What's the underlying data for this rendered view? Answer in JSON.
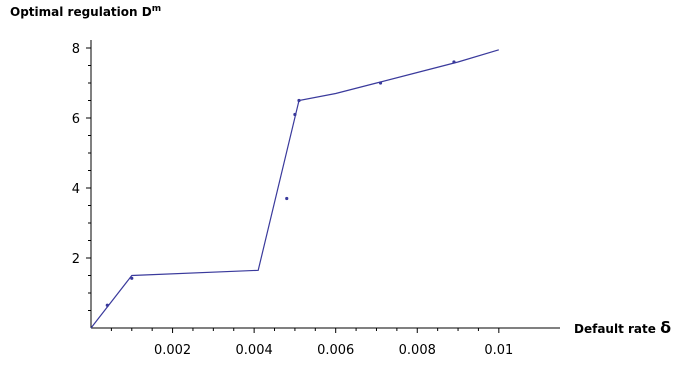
{
  "chart_data": {
    "type": "line",
    "title": "",
    "ylabel": "Optimal regulation D",
    "ylabel_superscript": "m",
    "xlabel": "Default rate ",
    "xlabel_symbol": "δ",
    "xlim": [
      0,
      0.0115
    ],
    "ylim": [
      0,
      8.4
    ],
    "x_ticks": [
      0.002,
      0.004,
      0.006,
      0.008,
      0.01
    ],
    "x_tick_labels": [
      "0.002",
      "0.004",
      "0.006",
      "0.008",
      "0.01"
    ],
    "y_ticks": [
      2,
      4,
      6,
      8
    ],
    "y_tick_labels": [
      "2",
      "4",
      "6",
      "8"
    ],
    "grid": false,
    "series": [
      {
        "color": "#3a3a9c",
        "x": [
          0,
          0.001,
          0.0041,
          0.0051,
          0.006,
          0.007,
          0.008,
          0.009,
          0.01
        ],
        "y": [
          0,
          1.5,
          1.65,
          6.5,
          6.7,
          7.0,
          7.3,
          7.6,
          7.95
        ]
      }
    ],
    "markers": [
      {
        "x": 0.0004,
        "y": 0.65
      },
      {
        "x": 0.001,
        "y": 1.42
      },
      {
        "x": 0.0048,
        "y": 3.7
      },
      {
        "x": 0.005,
        "y": 6.1
      },
      {
        "x": 0.0051,
        "y": 6.5
      },
      {
        "x": 0.0071,
        "y": 7.0
      },
      {
        "x": 0.0089,
        "y": 7.6
      }
    ]
  }
}
